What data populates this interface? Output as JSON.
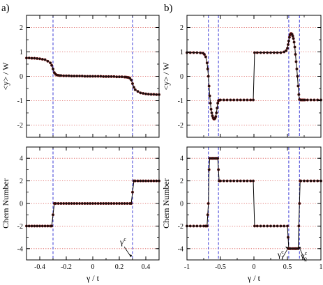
{
  "figure": {
    "panel_labels": [
      "a)",
      "b)"
    ]
  },
  "chart_data": [
    {
      "id": "a-top",
      "type": "scatter",
      "ylabel": "<y> / W",
      "xlim": [
        -0.5,
        0.5
      ],
      "ylim": [
        -2.5,
        2.5
      ],
      "yticks": [
        -2,
        -1,
        0,
        1,
        2
      ],
      "grid": "horizontal dotted red",
      "vlines": [
        -0.3,
        0.3
      ],
      "series": [
        {
          "x": [
            -0.5,
            -0.48,
            -0.46,
            -0.44,
            -0.42,
            -0.4,
            -0.38,
            -0.36,
            -0.34,
            -0.32,
            -0.31,
            -0.3,
            -0.29,
            -0.28,
            -0.27,
            -0.26,
            -0.25,
            -0.24,
            -0.22,
            -0.2,
            -0.18,
            -0.16,
            -0.14,
            -0.12,
            -0.1,
            -0.08,
            -0.06,
            -0.04,
            -0.02,
            0,
            0.02,
            0.04,
            0.06,
            0.08,
            0.1,
            0.12,
            0.14,
            0.16,
            0.18,
            0.2,
            0.22,
            0.24,
            0.25,
            0.26,
            0.27,
            0.28,
            0.29,
            0.3,
            0.31,
            0.32,
            0.34,
            0.36,
            0.38,
            0.4,
            0.42,
            0.44,
            0.46,
            0.48,
            0.5
          ],
          "y": [
            0.75,
            0.75,
            0.74,
            0.74,
            0.73,
            0.72,
            0.7,
            0.68,
            0.62,
            0.55,
            0.45,
            0.3,
            0.15,
            0.08,
            0.05,
            0.04,
            0.03,
            0.03,
            0.02,
            0.02,
            0.02,
            0.01,
            0.01,
            0.01,
            0.01,
            0.01,
            0.0,
            0.0,
            0.0,
            0.0,
            0.0,
            0.0,
            0.0,
            -0.01,
            -0.01,
            -0.01,
            -0.01,
            -0.01,
            -0.02,
            -0.02,
            -0.02,
            -0.03,
            -0.03,
            -0.04,
            -0.05,
            -0.08,
            -0.15,
            -0.3,
            -0.45,
            -0.55,
            -0.62,
            -0.68,
            -0.7,
            -0.72,
            -0.73,
            -0.74,
            -0.74,
            -0.75,
            -0.75
          ]
        }
      ]
    },
    {
      "id": "a-bottom",
      "type": "scatter",
      "ylabel": "Chern Number",
      "xlabel": "γ / t",
      "xlim": [
        -0.5,
        0.5
      ],
      "ylim": [
        -5,
        5
      ],
      "yticks": [
        -4,
        -2,
        0,
        2,
        4
      ],
      "xticks": [
        -0.4,
        -0.2,
        0,
        0.2,
        0.4
      ],
      "grid": "horizontal dotted red",
      "vlines": [
        -0.3,
        0.3
      ],
      "annotations": [
        {
          "text": "γ",
          "sup": "c",
          "x": 0.3,
          "y": -5
        }
      ],
      "series": [
        {
          "x": [
            -0.5,
            -0.48,
            -0.46,
            -0.44,
            -0.42,
            -0.4,
            -0.38,
            -0.36,
            -0.34,
            -0.32,
            -0.31,
            -0.3,
            -0.29,
            -0.28,
            -0.26,
            -0.24,
            -0.22,
            -0.2,
            -0.18,
            -0.16,
            -0.14,
            -0.12,
            -0.1,
            -0.08,
            -0.06,
            -0.04,
            -0.02,
            0,
            0.02,
            0.04,
            0.06,
            0.08,
            0.1,
            0.12,
            0.14,
            0.16,
            0.18,
            0.2,
            0.22,
            0.24,
            0.26,
            0.28,
            0.29,
            0.3,
            0.31,
            0.32,
            0.34,
            0.36,
            0.38,
            0.4,
            0.42,
            0.44,
            0.46,
            0.48,
            0.5
          ],
          "y": [
            -2,
            -2,
            -2,
            -2,
            -2,
            -2,
            -2,
            -2,
            -2,
            -2,
            -2,
            -1,
            0,
            0,
            0,
            0,
            0,
            0,
            0,
            0,
            0,
            0,
            0,
            0,
            0,
            0,
            0,
            0,
            0,
            0,
            0,
            0,
            0,
            0,
            0,
            0,
            0,
            0,
            0,
            0,
            0,
            0,
            0,
            1,
            2,
            2,
            2,
            2,
            2,
            2,
            2,
            2,
            2,
            2,
            2
          ]
        }
      ]
    },
    {
      "id": "b-top",
      "type": "scatter",
      "ylabel": "<y> / W",
      "xlim": [
        -1,
        1
      ],
      "ylim": [
        -2.5,
        2.5
      ],
      "yticks": [
        -2,
        -1,
        0,
        1,
        2
      ],
      "grid": "horizontal dotted red",
      "vlines": [
        -0.68,
        -0.53,
        0.52,
        0.68
      ],
      "series": [
        {
          "x": [
            -1,
            -0.95,
            -0.9,
            -0.85,
            -0.8,
            -0.76,
            -0.74,
            -0.72,
            -0.7,
            -0.69,
            -0.68,
            -0.67,
            -0.66,
            -0.65,
            -0.64,
            -0.63,
            -0.62,
            -0.61,
            -0.6,
            -0.59,
            -0.58,
            -0.57,
            -0.56,
            -0.55,
            -0.54,
            -0.53,
            -0.52,
            -0.5,
            -0.45,
            -0.4,
            -0.35,
            -0.3,
            -0.25,
            -0.2,
            -0.15,
            -0.1,
            -0.05,
            -0.01,
            0.01,
            0.05,
            0.1,
            0.15,
            0.2,
            0.25,
            0.3,
            0.35,
            0.4,
            0.45,
            0.48,
            0.5,
            0.51,
            0.52,
            0.53,
            0.54,
            0.55,
            0.56,
            0.57,
            0.58,
            0.59,
            0.6,
            0.61,
            0.62,
            0.63,
            0.64,
            0.65,
            0.66,
            0.67,
            0.68,
            0.7,
            0.72,
            0.74,
            0.76,
            0.8,
            0.85,
            0.9,
            0.95,
            1
          ],
          "y": [
            0.97,
            0.97,
            0.97,
            0.97,
            0.96,
            0.95,
            0.9,
            0.8,
            0.55,
            0.3,
            0.0,
            -0.4,
            -0.8,
            -1.1,
            -1.35,
            -1.5,
            -1.62,
            -1.7,
            -1.75,
            -1.75,
            -1.72,
            -1.65,
            -1.5,
            -1.3,
            -1.1,
            -1.0,
            -0.98,
            -0.97,
            -0.97,
            -0.97,
            -0.97,
            -0.97,
            -0.97,
            -0.97,
            -0.97,
            -0.97,
            -0.97,
            -0.97,
            0.97,
            0.97,
            0.97,
            0.97,
            0.97,
            0.97,
            0.97,
            0.97,
            0.97,
            1.0,
            1.05,
            1.15,
            1.3,
            1.45,
            1.6,
            1.7,
            1.75,
            1.75,
            1.72,
            1.65,
            1.55,
            1.4,
            1.2,
            0.9,
            0.6,
            0.3,
            0.0,
            -0.4,
            -0.75,
            -0.95,
            -0.97,
            -0.97,
            -0.97,
            -0.97,
            -0.97,
            -0.97,
            -0.97,
            -0.97,
            -0.97
          ]
        }
      ]
    },
    {
      "id": "b-bottom",
      "type": "scatter",
      "ylabel": "Chern Number",
      "xlabel": "γ / t",
      "xlim": [
        -1,
        1
      ],
      "ylim": [
        -5,
        5
      ],
      "yticks": [
        -4,
        -2,
        0,
        2,
        4
      ],
      "xticks": [
        -1,
        -0.5,
        0,
        0.5,
        1
      ],
      "grid": "horizontal dotted red",
      "vlines": [
        -0.68,
        -0.53,
        0.52,
        0.68
      ],
      "annotations": [
        {
          "text": "γ",
          "sup": "c",
          "sub": "1",
          "x": 0.52,
          "y": -4
        },
        {
          "text": "γ",
          "sup": "c",
          "sub": "2",
          "x": 0.68,
          "y": -4
        }
      ],
      "series": [
        {
          "x": [
            -1,
            -0.95,
            -0.9,
            -0.85,
            -0.8,
            -0.75,
            -0.72,
            -0.7,
            -0.69,
            -0.68,
            -0.67,
            -0.66,
            -0.64,
            -0.62,
            -0.6,
            -0.58,
            -0.56,
            -0.54,
            -0.53,
            -0.52,
            -0.5,
            -0.45,
            -0.4,
            -0.35,
            -0.3,
            -0.25,
            -0.2,
            -0.15,
            -0.1,
            -0.05,
            -0.01,
            0.01,
            0.05,
            0.1,
            0.15,
            0.2,
            0.25,
            0.3,
            0.35,
            0.4,
            0.45,
            0.5,
            0.51,
            0.52,
            0.53,
            0.55,
            0.58,
            0.6,
            0.62,
            0.64,
            0.66,
            0.67,
            0.68,
            0.69,
            0.7,
            0.75,
            0.8,
            0.85,
            0.9,
            0.95,
            1
          ],
          "y": [
            -2,
            -2,
            -2,
            -2,
            -2,
            -2,
            -2,
            -2,
            -1,
            0,
            3,
            4,
            4,
            4,
            4,
            4,
            4,
            4,
            3,
            2,
            2,
            2,
            2,
            2,
            2,
            2,
            2,
            2,
            2,
            2,
            2,
            -2,
            -2,
            -2,
            -2,
            -2,
            -2,
            -2,
            -2,
            -2,
            -2,
            -2,
            -3,
            -4,
            -4,
            -4,
            -4,
            -4,
            -4,
            -4,
            -4,
            -2,
            0,
            2,
            2,
            2,
            2,
            2,
            2,
            2,
            2
          ]
        }
      ]
    }
  ]
}
